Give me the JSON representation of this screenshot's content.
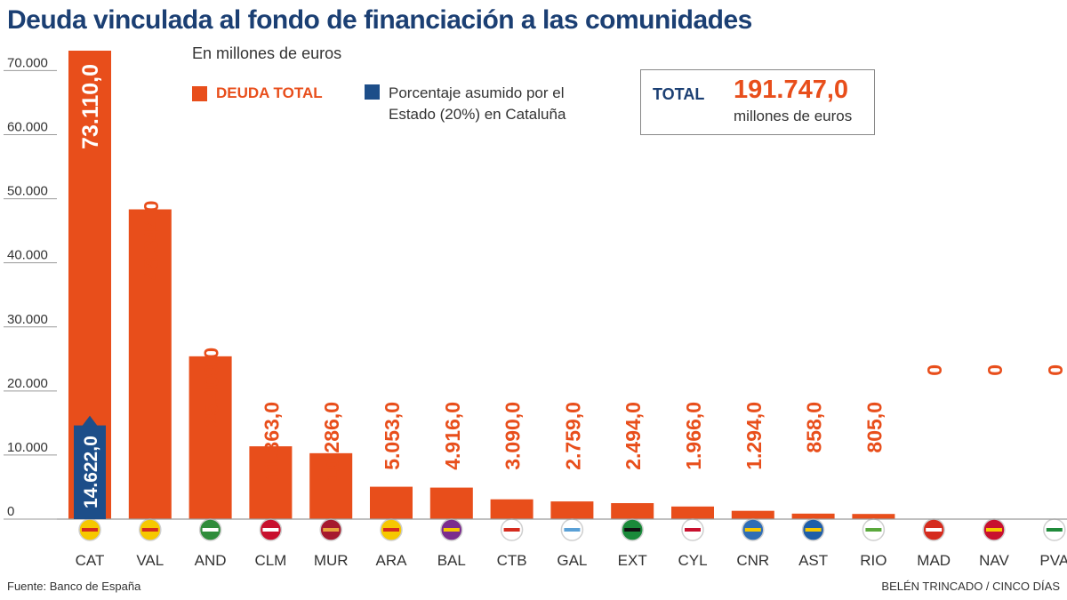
{
  "title": "Deuda vinculada al fondo de financiación a las comunidades",
  "subtitle": "En millones de euros",
  "legend": {
    "total_label": "DEUDA TOTAL",
    "state_label": "Porcentaje asumido por el Estado (20%) en Cataluña"
  },
  "total_box": {
    "label": "TOTAL",
    "value": "191.747,0",
    "unit": "millones de euros"
  },
  "source": "Fuente: Banco de España",
  "credit": "BELÉN TRINCADO / CINCO DÍAS",
  "colors": {
    "total": "#e84e1b",
    "state": "#1d4e89",
    "axis_text": "#333333",
    "grid": "#d9d9d9"
  },
  "chart_data": {
    "type": "bar",
    "categories": [
      "CAT",
      "VAL",
      "AND",
      "CLM",
      "MUR",
      "ARA",
      "BAL",
      "CTB",
      "GAL",
      "EXT",
      "CYL",
      "CNR",
      "AST",
      "RIO",
      "MAD",
      "NAV",
      "PVA"
    ],
    "series": [
      {
        "name": "DEUDA TOTAL",
        "values": [
          73110.0,
          48344.0,
          25409.0,
          11363.0,
          10286.0,
          5053.0,
          4916.0,
          3090.0,
          2759.0,
          2494.0,
          1966.0,
          1294.0,
          858.0,
          805.0,
          0,
          0,
          0
        ],
        "labels": [
          "73.110,0",
          "48.344,0",
          "25.409,0",
          "11.363,0",
          "10.286,0",
          "5.053,0",
          "4.916,0",
          "3.090,0",
          "2.759,0",
          "2.494,0",
          "1.966,0",
          "1.294,0",
          "858,0",
          "805,0",
          "0",
          "0",
          "0"
        ]
      },
      {
        "name": "Porcentaje asumido por el Estado (20%) en Cataluña",
        "category": "CAT",
        "value": 14622.0,
        "label": "14.622,0"
      }
    ],
    "yticks": [
      0,
      10000,
      20000,
      30000,
      40000,
      50000,
      60000,
      70000
    ],
    "ytick_labels": [
      "0",
      "10.000",
      "20.000",
      "30.000",
      "40.000",
      "50.000",
      "60.000",
      "70.000"
    ],
    "ylim": [
      0,
      73110
    ],
    "grid": false,
    "legend_position": "top-left",
    "flag_icons": [
      "catalonia-flag-icon",
      "valencia-flag-icon",
      "andalusia-flag-icon",
      "castilla-la-mancha-flag-icon",
      "murcia-flag-icon",
      "aragon-flag-icon",
      "balearic-flag-icon",
      "cantabria-flag-icon",
      "galicia-flag-icon",
      "extremadura-flag-icon",
      "castilla-y-leon-flag-icon",
      "canarias-flag-icon",
      "asturias-flag-icon",
      "la-rioja-flag-icon",
      "madrid-flag-icon",
      "navarra-flag-icon",
      "basque-flag-icon"
    ]
  }
}
